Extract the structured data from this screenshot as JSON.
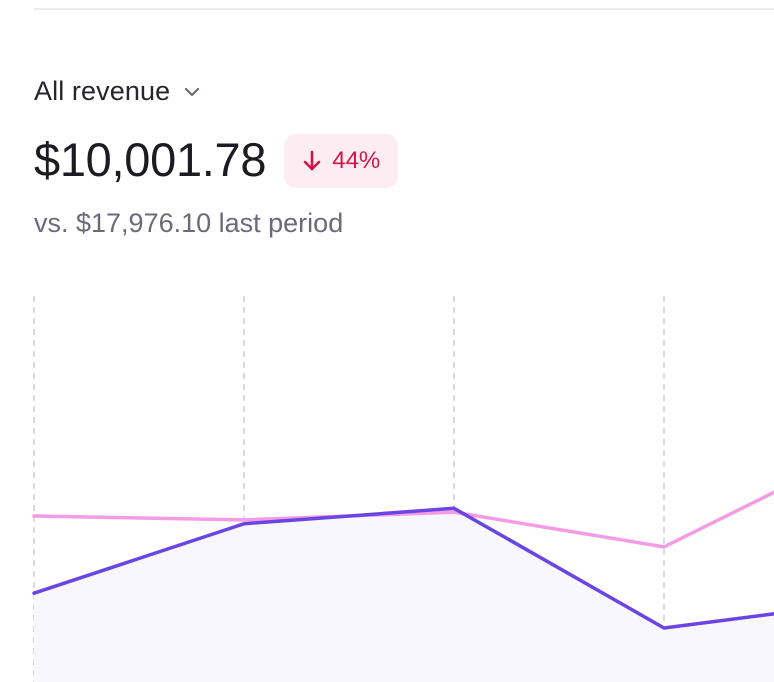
{
  "metric_selector": {
    "label": "All revenue",
    "icon": "chevron-down-icon"
  },
  "summary": {
    "value": "$10,001.78",
    "change": {
      "direction": "down",
      "icon": "arrow-down-icon",
      "text": "44%",
      "color": "#d0174a",
      "background": "#fdecf1"
    },
    "comparison": "vs. $17,976.10 last period"
  },
  "chart_data": {
    "type": "area",
    "x": [
      1,
      2,
      3,
      4,
      5
    ],
    "ylim": [
      0,
      100
    ],
    "grid": "vertical dashed",
    "series": [
      {
        "role": "current",
        "color": "#6a45e3",
        "fill": "#f9f7fe",
        "values": [
          23,
          41,
          45,
          14,
          21
        ]
      },
      {
        "role": "previous",
        "color": "#f39be5",
        "values": [
          43,
          42,
          44,
          35,
          62
        ]
      }
    ]
  }
}
